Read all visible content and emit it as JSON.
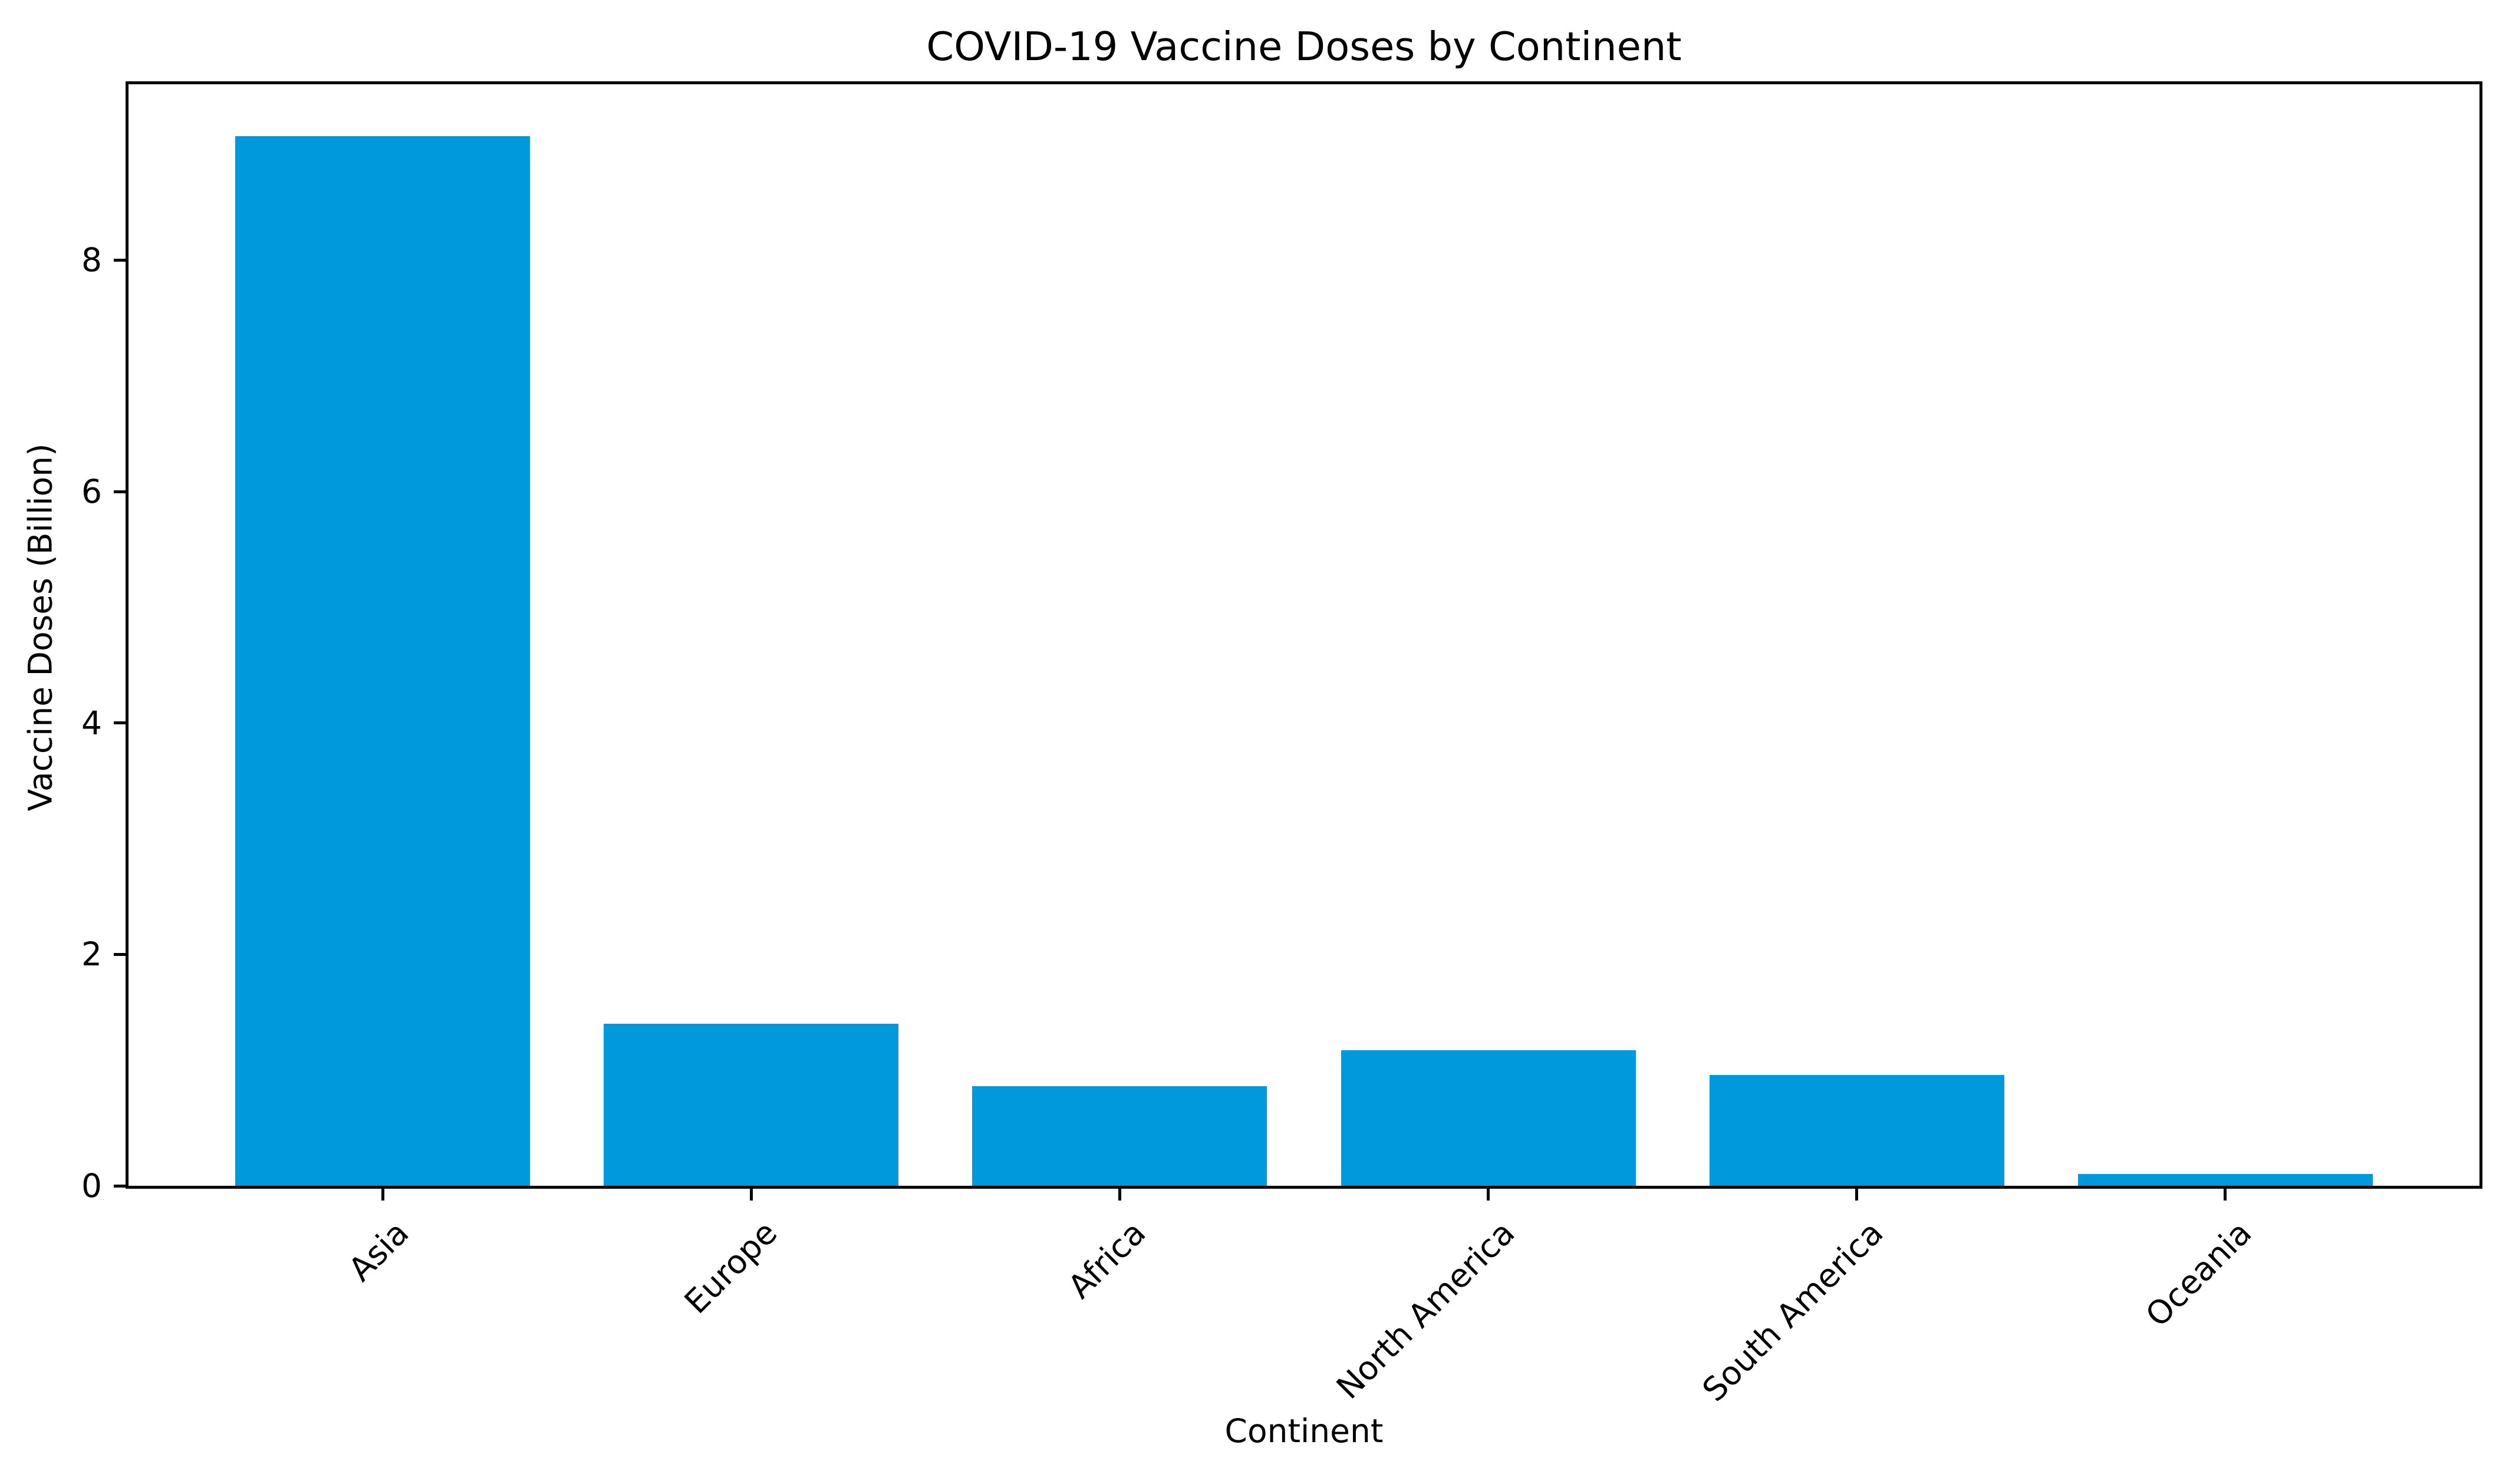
{
  "figure": {
    "background_color": "#ffffff",
    "axis_color": "#000000"
  },
  "chart_data": {
    "type": "bar",
    "title": "COVID-19 Vaccine Doses by Continent",
    "xlabel": "Continent",
    "ylabel": "Vaccine Doses (Billion)",
    "categories": [
      "Asia",
      "Europe",
      "Africa",
      "North America",
      "South America",
      "Oceania"
    ],
    "values": [
      9.07,
      1.4,
      0.86,
      1.17,
      0.96,
      0.1
    ],
    "bar_color": "#0099db",
    "yticks": [
      0,
      2,
      4,
      6,
      8
    ],
    "ylim": [
      0,
      9.52
    ],
    "grid": false,
    "legend_position": "none",
    "x_tick_rotation_deg": 45
  }
}
